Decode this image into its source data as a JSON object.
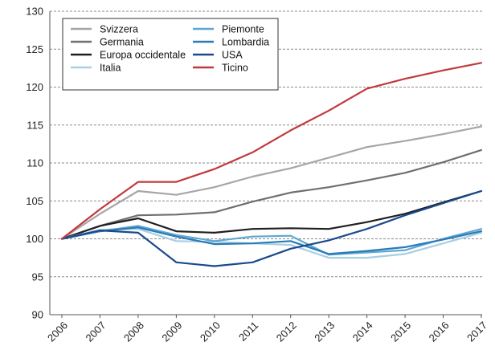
{
  "chart_data": {
    "type": "line",
    "x": [
      "2006",
      "2007",
      "2008",
      "2009",
      "2010",
      "2011",
      "2012",
      "2013",
      "2014",
      "2015",
      "2016",
      "2017"
    ],
    "ylim": [
      90,
      130
    ],
    "yticks": [
      90,
      95,
      100,
      105,
      110,
      115,
      120,
      125,
      130
    ],
    "grid": true,
    "legend_placement": "top-left",
    "series": [
      {
        "name": "Svizzera",
        "color": "#a6a6a6",
        "values": [
          100,
          103.3,
          106.3,
          105.8,
          106.8,
          108.2,
          109.3,
          110.7,
          112.1,
          112.9,
          113.8,
          114.8
        ]
      },
      {
        "name": "Germania",
        "color": "#6f6f6f",
        "values": [
          100,
          101.7,
          103.1,
          103.2,
          103.5,
          104.9,
          106.1,
          106.8,
          107.7,
          108.7,
          110.1,
          111.7
        ]
      },
      {
        "name": "Europa occidentale",
        "color": "#1f1f1f",
        "values": [
          100,
          101.7,
          102.7,
          101.0,
          100.8,
          101.3,
          101.4,
          101.3,
          102.2,
          103.3,
          104.8,
          106.3
        ]
      },
      {
        "name": "Italia",
        "color": "#a8cfe3",
        "values": [
          100,
          101.2,
          101.3,
          99.7,
          99.6,
          99.4,
          99.2,
          97.5,
          97.5,
          98.0,
          99.4,
          100.8
        ]
      },
      {
        "name": "Piemonte",
        "color": "#5fa7d1",
        "values": [
          100,
          101.0,
          101.7,
          100.5,
          99.7,
          100.3,
          100.4,
          97.9,
          98.2,
          98.5,
          100.0,
          101.3
        ]
      },
      {
        "name": "Lombardia",
        "color": "#2a7ab8",
        "values": [
          100,
          101.0,
          101.5,
          100.3,
          99.3,
          99.4,
          99.7,
          98.0,
          98.4,
          98.9,
          99.9,
          101.0
        ]
      },
      {
        "name": "USA",
        "color": "#1a4a8d",
        "values": [
          100,
          101.1,
          100.8,
          96.9,
          96.4,
          96.9,
          98.7,
          99.8,
          101.3,
          103.1,
          104.7,
          106.3
        ]
      },
      {
        "name": "Ticino",
        "color": "#c2393d",
        "values": [
          100,
          103.9,
          107.5,
          107.5,
          109.2,
          111.4,
          114.3,
          116.9,
          119.8,
          121.1,
          122.2,
          123.2
        ]
      }
    ]
  }
}
